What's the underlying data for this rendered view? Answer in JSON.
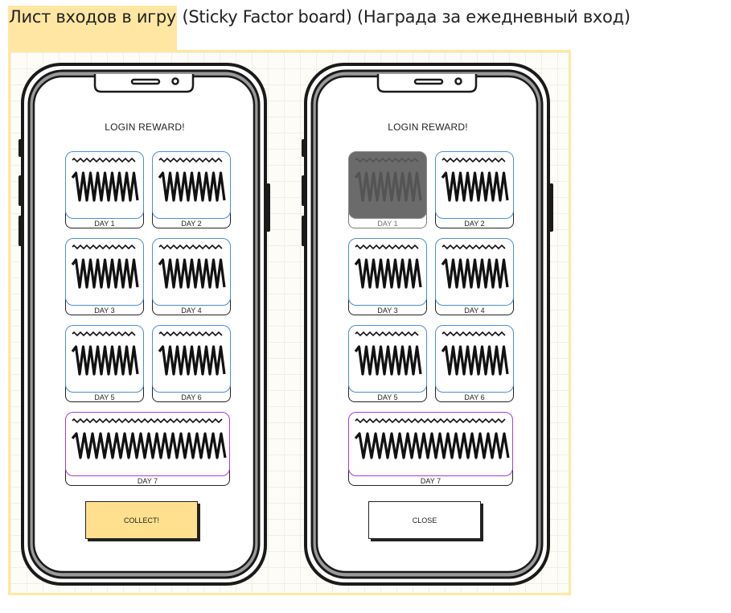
{
  "header": {
    "title_highlight": "Лист входов в игру",
    "title_rest": " (Sticky Factor board) (Награда за ежедневный вход)"
  },
  "colors": {
    "highlight": "#ffe7a3",
    "card_border": "#4a8fd9",
    "wide_card_border": "#a13de0",
    "collect_button": "#ffe08e",
    "claimed_overlay": "#6b6b6b"
  },
  "screens": [
    {
      "title": "LOGIN REWARD!",
      "days": [
        "DAY 1",
        "DAY 2",
        "DAY 3",
        "DAY 4",
        "DAY 5",
        "DAY 6"
      ],
      "big_day": "DAY 7",
      "button": "COLLECT!",
      "claimed": []
    },
    {
      "title": "LOGIN REWARD!",
      "days": [
        "DAY 1",
        "DAY 2",
        "DAY 3",
        "DAY 4",
        "DAY 5",
        "DAY 6"
      ],
      "big_day": "DAY 7",
      "button": "CLOSE",
      "claimed": [
        "DAY 1"
      ]
    }
  ]
}
